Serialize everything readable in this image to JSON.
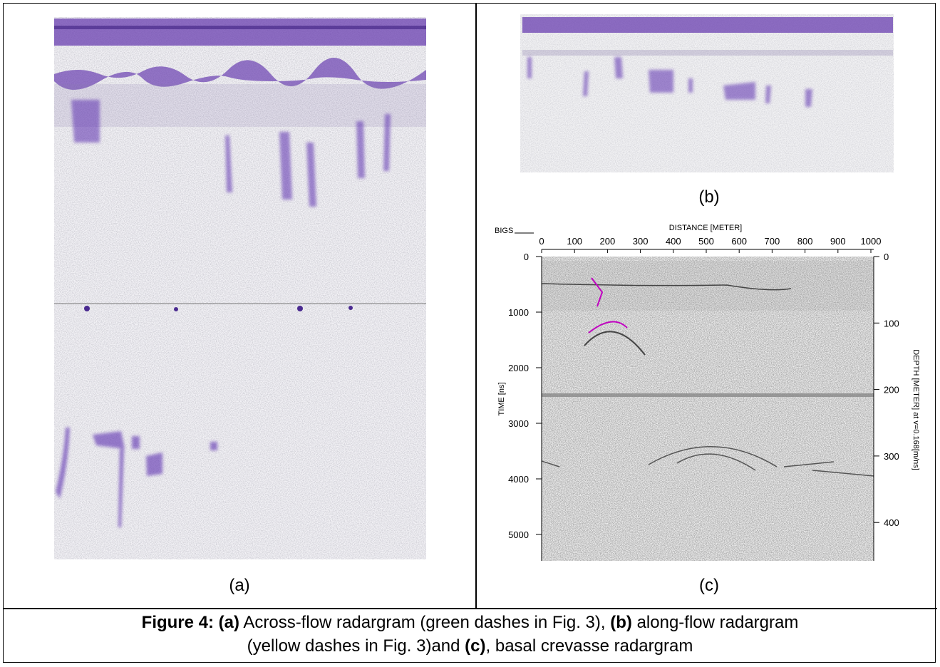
{
  "panels": [
    {
      "label": "(a)"
    },
    {
      "label": "(b)"
    },
    {
      "label": "(c)",
      "plot": {
        "corner": "BIGS",
        "x_title": "DISTANCE [METER]",
        "x_ticks": [
          0,
          100,
          200,
          300,
          400,
          500,
          600,
          700,
          800,
          900,
          1000
        ],
        "y_title": "TIME [ns]",
        "y_ticks": [
          0,
          1000,
          2000,
          3000,
          4000,
          5000
        ],
        "y2_title": "DEPTH [METER] at v=0.168[m/ns]",
        "y2_ticks": [
          0,
          100,
          200,
          300,
          400
        ]
      }
    }
  ],
  "caption": {
    "figure": "Figure 4:",
    "a_tag": "(a)",
    "a_text": "Across-flow radargram (green dashes in Fig. 3),",
    "b_tag": "(b)",
    "b_text": "along-flow radargram",
    "b_text2": "(yellow dashes in Fig. 3)and",
    "c_tag": "(c)",
    "c_text": ", basal crevasse radargram"
  }
}
